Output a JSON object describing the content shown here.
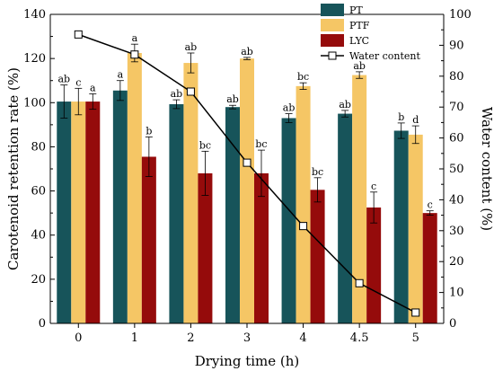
{
  "chart_data": {
    "type": "bar",
    "categories": [
      "0",
      "1",
      "2",
      "3",
      "4",
      "4.5",
      "5"
    ],
    "xlabel": "Drying time (h)",
    "ylabel": "Carotenoid retention rate (%)",
    "y2label": "Water content (%)",
    "ylim": [
      0,
      140
    ],
    "y2lim": [
      0,
      100
    ],
    "yticks": [
      0,
      20,
      40,
      60,
      80,
      100,
      120,
      140
    ],
    "y2ticks": [
      0,
      10,
      20,
      30,
      40,
      50,
      60,
      70,
      80,
      90,
      100
    ],
    "legend_position": "top-right",
    "grid": false,
    "series": [
      {
        "name": "PT",
        "color": "#17545a",
        "values": [
          100.5,
          105.5,
          99.3,
          98.0,
          93.0,
          95.0,
          87.3
        ],
        "errors": [
          7.5,
          4.5,
          2.0,
          0.8,
          2.0,
          1.5,
          3.5
        ],
        "labels": [
          "ab",
          "a",
          "ab",
          "ab",
          "ab",
          "ab",
          "b"
        ]
      },
      {
        "name": "PTF",
        "color": "#f5c665",
        "values": [
          100.5,
          122.5,
          118.0,
          120.0,
          107.5,
          112.5,
          85.5
        ],
        "errors": [
          6.0,
          4.0,
          4.5,
          0.5,
          1.5,
          1.5,
          4.0
        ],
        "labels": [
          "c",
          "a",
          "ab",
          "ab",
          "bc",
          "ab",
          "d"
        ]
      },
      {
        "name": "LYC",
        "color": "#950b0b",
        "values": [
          100.5,
          75.5,
          68.0,
          68.0,
          60.5,
          52.5,
          50.0
        ],
        "errors": [
          3.5,
          9.0,
          10.0,
          10.5,
          5.5,
          7.0,
          1.0
        ],
        "labels": [
          "a",
          "b",
          "bc",
          "bc",
          "bc",
          "c",
          "c"
        ]
      }
    ],
    "line_series": {
      "name": "Water content",
      "axis": "right",
      "color": "#000000",
      "marker": "open-square",
      "values": [
        93.5,
        87.0,
        75.0,
        52.0,
        31.5,
        13.0,
        3.5
      ]
    }
  }
}
